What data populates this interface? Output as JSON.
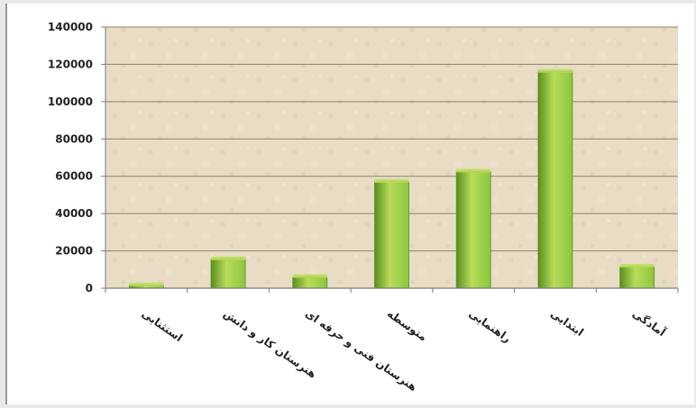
{
  "chart_data": {
    "type": "bar",
    "categories": [
      "استثنایی",
      "هنرستان کار و دانش",
      "هنرستان فنی و حرفه ای",
      "متوسطه",
      "راهنمایی",
      "ابتدایی",
      "آمادگی"
    ],
    "values": [
      1500,
      15500,
      6000,
      57000,
      62500,
      116000,
      11500
    ],
    "ylim": [
      0,
      140000
    ],
    "yticks": [
      "0",
      "20000",
      "40000",
      "60000",
      "80000",
      "100000",
      "120000",
      "140000"
    ],
    "grid": true,
    "legend": "none",
    "colors": {
      "plot_bg": "#e8dcc4",
      "bar_light": "#b8dc5a",
      "bar_mid": "#8cc63e",
      "bar_dark": "#5a8f1e",
      "gridline": "#8a8272",
      "axis": "#7a7a7a"
    }
  }
}
